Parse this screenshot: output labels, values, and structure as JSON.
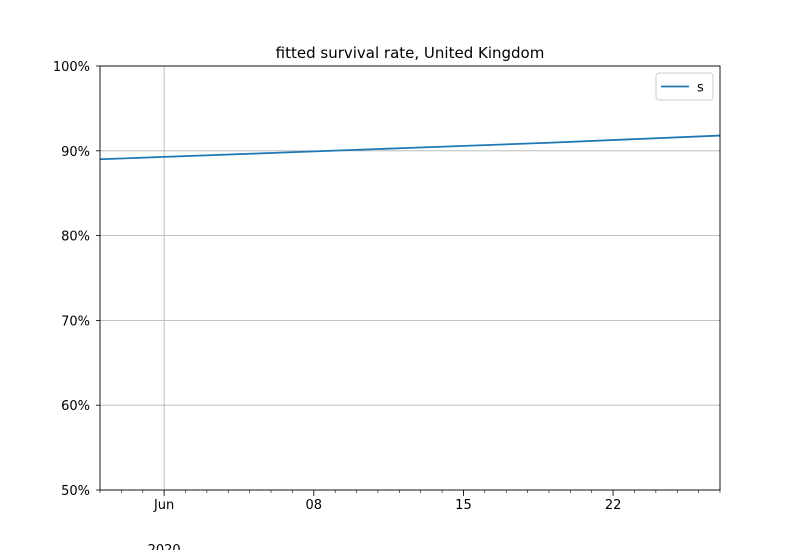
{
  "chart_data": {
    "type": "line",
    "title": "fitted survival rate, United Kingdom",
    "xlabel": "",
    "ylabel": "",
    "ylim": [
      0.5,
      1.0
    ],
    "xlim": [
      "2020-05-29",
      "2020-06-27"
    ],
    "y_ticks": [
      0.5,
      0.6,
      0.7,
      0.8,
      0.9,
      1.0
    ],
    "y_tick_labels": [
      "50%",
      "60%",
      "70%",
      "80%",
      "90%",
      "100%"
    ],
    "x_major_ticks": [
      {
        "date": "2020-06-01",
        "label": "Jun",
        "label2": "2020"
      },
      {
        "date": "2020-06-08",
        "label": "08"
      },
      {
        "date": "2020-06-15",
        "label": "15"
      },
      {
        "date": "2020-06-22",
        "label": "22"
      }
    ],
    "vertical_gridline_dates": [
      "2020-06-01"
    ],
    "horizontal_grid": true,
    "legend_position": "top-right",
    "series": [
      {
        "name": "s",
        "color": "#1f77b4",
        "x": [
          "2020-05-29",
          "2020-06-05",
          "2020-06-12",
          "2020-06-19",
          "2020-06-27"
        ],
        "y": [
          0.89,
          0.8965,
          0.903,
          0.9095,
          0.918
        ]
      }
    ]
  }
}
